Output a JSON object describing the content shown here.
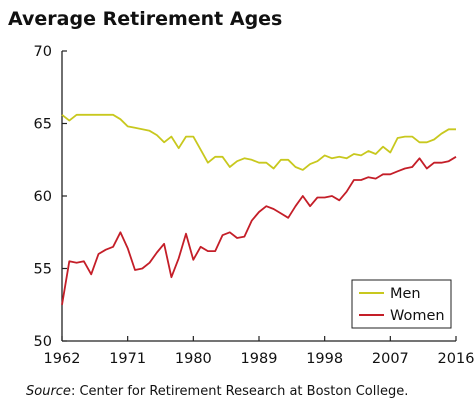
{
  "chart_data": {
    "type": "line",
    "title": "Average Retirement Ages",
    "xlabel": "",
    "ylabel": "",
    "xlim": [
      1962,
      2016
    ],
    "ylim": [
      50,
      70
    ],
    "x_ticks": [
      1962,
      1971,
      1980,
      1989,
      1998,
      2007,
      2016
    ],
    "y_ticks": [
      50,
      55,
      60,
      65,
      70
    ],
    "grid": false,
    "legend_position": "bottom-right",
    "x": [
      1962,
      1963,
      1964,
      1965,
      1966,
      1967,
      1968,
      1969,
      1970,
      1971,
      1972,
      1973,
      1974,
      1975,
      1976,
      1977,
      1978,
      1979,
      1980,
      1981,
      1982,
      1983,
      1984,
      1985,
      1986,
      1987,
      1988,
      1989,
      1990,
      1991,
      1992,
      1993,
      1994,
      1995,
      1996,
      1997,
      1998,
      1999,
      2000,
      2001,
      2002,
      2003,
      2004,
      2005,
      2006,
      2007,
      2008,
      2009,
      2010,
      2011,
      2012,
      2013,
      2014,
      2015,
      2016
    ],
    "series": [
      {
        "name": "Men",
        "color": "#c8c81e",
        "values": [
          65.6,
          65.2,
          65.6,
          65.6,
          65.6,
          65.6,
          65.6,
          65.6,
          65.3,
          64.8,
          64.7,
          64.6,
          64.5,
          64.2,
          63.7,
          64.1,
          63.3,
          64.1,
          64.1,
          63.2,
          62.3,
          62.7,
          62.7,
          62.0,
          62.4,
          62.6,
          62.5,
          62.3,
          62.3,
          61.9,
          62.5,
          62.5,
          62.0,
          61.8,
          62.2,
          62.4,
          62.8,
          62.6,
          62.7,
          62.6,
          62.9,
          62.8,
          63.1,
          62.9,
          63.4,
          63.0,
          64.0,
          64.1,
          64.1,
          63.7,
          63.7,
          63.9,
          64.3,
          64.6,
          64.6
        ]
      },
      {
        "name": "Women",
        "color": "#c41e28",
        "values": [
          52.5,
          55.5,
          55.4,
          55.5,
          54.6,
          56.0,
          56.3,
          56.5,
          57.5,
          56.4,
          54.9,
          55.0,
          55.4,
          56.1,
          56.7,
          54.4,
          55.7,
          57.4,
          55.6,
          56.5,
          56.2,
          56.2,
          57.3,
          57.5,
          57.1,
          57.2,
          58.3,
          58.9,
          59.3,
          59.1,
          58.8,
          58.5,
          59.3,
          60.0,
          59.3,
          59.9,
          59.9,
          60.0,
          59.7,
          60.3,
          61.1,
          61.1,
          61.3,
          61.2,
          61.5,
          61.5,
          61.7,
          61.9,
          62.0,
          62.6,
          61.9,
          62.3,
          62.3,
          62.4,
          62.7
        ]
      }
    ]
  },
  "source": {
    "prefix": "Source",
    "text": ": Center for Retirement Research at Boston College."
  }
}
